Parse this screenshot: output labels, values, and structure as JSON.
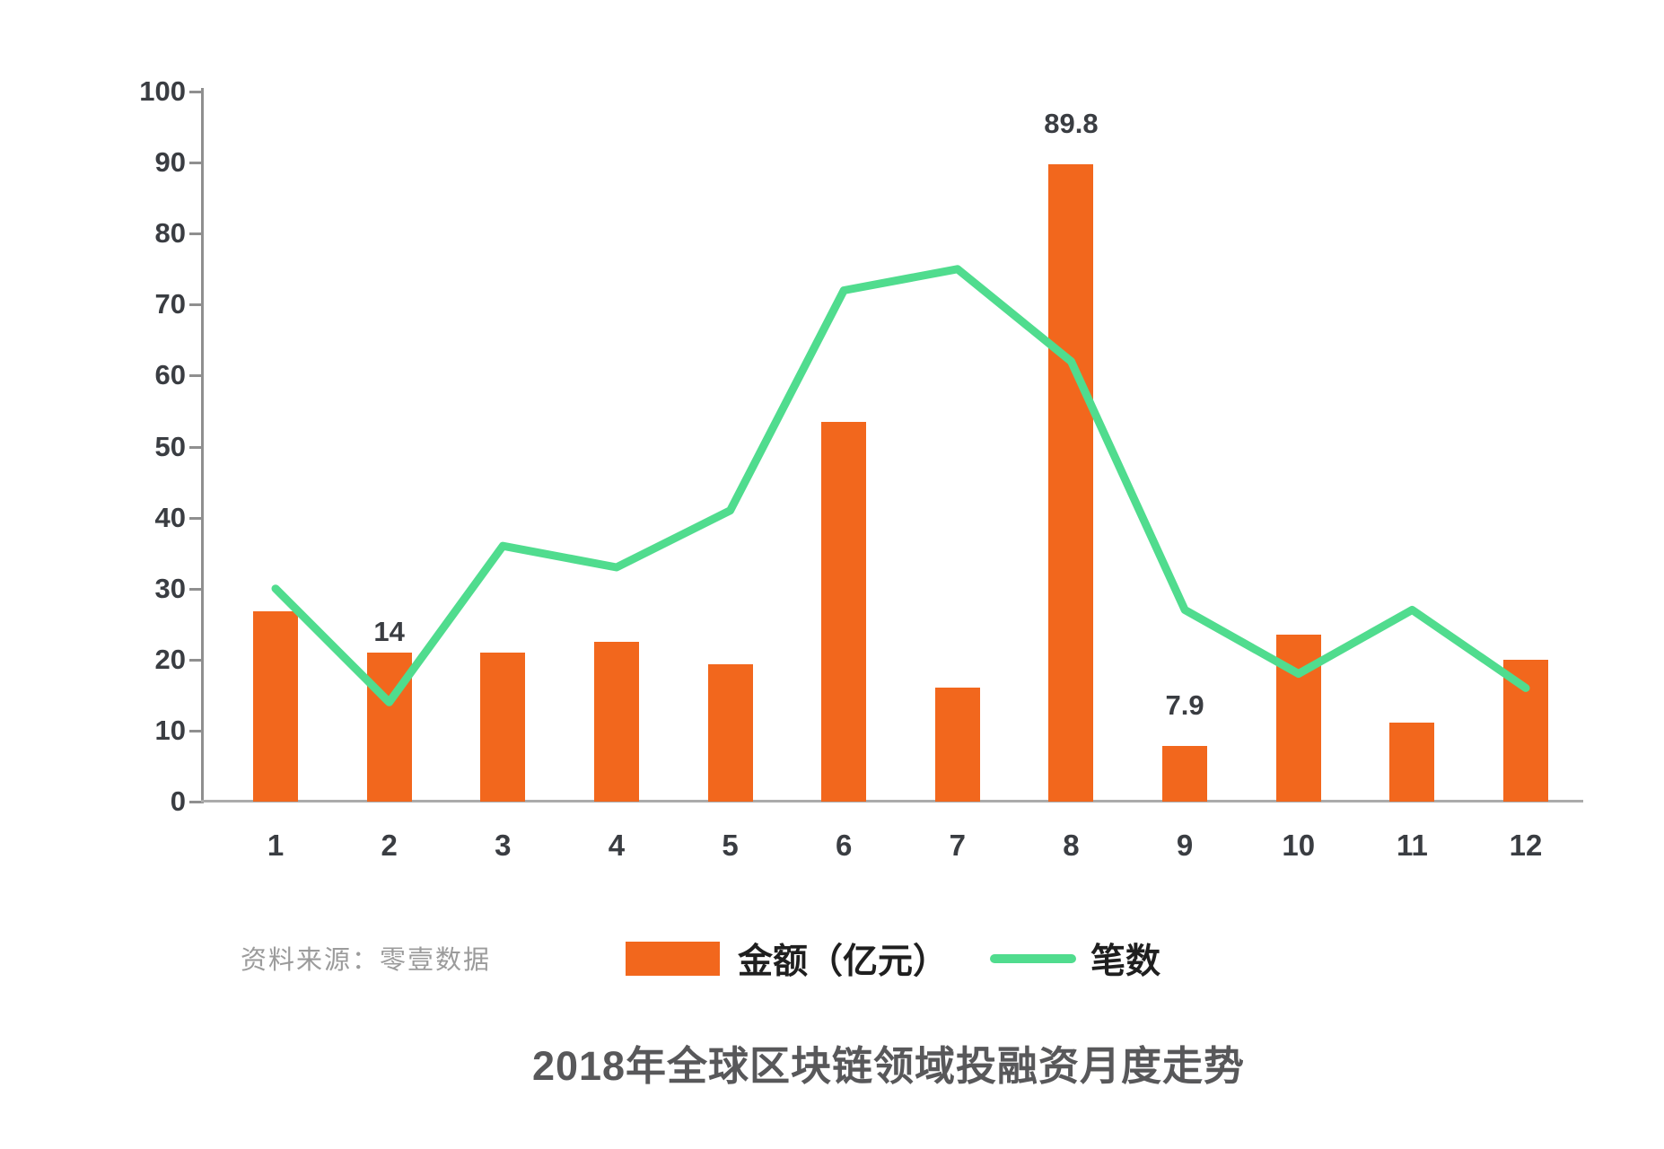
{
  "chart_data": {
    "type": "bar",
    "title": "2018年全球区块链领域投融资月度走势",
    "categories": [
      "1",
      "2",
      "3",
      "4",
      "5",
      "6",
      "7",
      "8",
      "9",
      "10",
      "11",
      "12"
    ],
    "series": [
      {
        "name": "金额（亿元）",
        "type": "bar",
        "color": "#F2671D",
        "values": [
          26.8,
          21,
          21,
          22.5,
          19.3,
          53.5,
          16,
          89.8,
          7.9,
          23.5,
          11.1,
          20
        ]
      },
      {
        "name": "笔数",
        "type": "line",
        "color": "#50DC8E",
        "values": [
          30,
          14,
          36,
          33,
          41,
          72,
          75,
          62,
          27,
          18,
          27,
          16
        ]
      }
    ],
    "point_labels": [
      {
        "series": "笔数",
        "category": "2",
        "text": "14",
        "tight": true
      },
      {
        "series": "金额（亿元）",
        "category": "8",
        "text": "89.8"
      },
      {
        "series": "金额（亿元）",
        "category": "9",
        "text": "7.9"
      }
    ],
    "ylim": [
      0,
      100
    ],
    "yticks": [
      0,
      10,
      20,
      30,
      40,
      50,
      60,
      70,
      80,
      90,
      100
    ],
    "grid": false,
    "legend_position": "bottom-center"
  },
  "source": {
    "text": "资料来源：零壹数据"
  },
  "colors": {
    "bar": "#F2671D",
    "line": "#50DC8E",
    "axis_text": "#3A3D42",
    "title_text": "#58585A",
    "legend_text": "#1F1F1F",
    "source_text": "#9B9B9B",
    "y_axis_line": "#8F8F8F",
    "x_axis_line": "#ABABAB"
  }
}
